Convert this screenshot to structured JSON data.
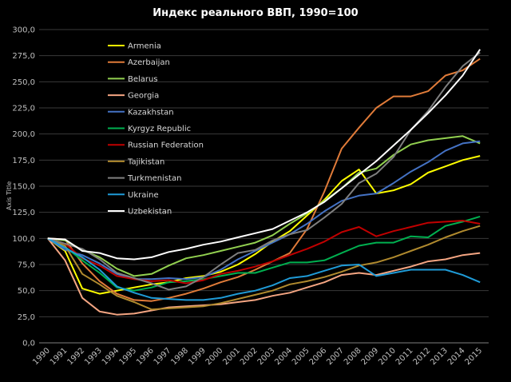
{
  "chart_data": {
    "type": "line",
    "title": "Индекс реального ВВП, 1990=100",
    "ylabel": "Axis Title",
    "xlabel": "",
    "ylim": [
      0,
      300
    ],
    "yticks": [
      "0,0",
      "25,0",
      "50,0",
      "75,0",
      "100,0",
      "125,0",
      "150,0",
      "175,0",
      "200,0",
      "225,0",
      "250,0",
      "275,0",
      "300,0"
    ],
    "grid": true,
    "legend_position": "top-left",
    "x": [
      "1990",
      "1991",
      "1992",
      "1993",
      "1994",
      "1995",
      "1996",
      "1997",
      "1998",
      "1999",
      "2000",
      "2001",
      "2002",
      "2003",
      "2004",
      "2005",
      "2006",
      "2007",
      "2008",
      "2009",
      "2010",
      "2011",
      "2012",
      "2013",
      "2014",
      "2015"
    ],
    "series": [
      {
        "name": "Armenia",
        "color": "#ffff00",
        "values": [
          100,
          88,
          52,
          47,
          50,
          53,
          56,
          58,
          62,
          64,
          68,
          75,
          85,
          97,
          107,
          122,
          137,
          155,
          166,
          143,
          146,
          152,
          163,
          169,
          175,
          179
        ]
      },
      {
        "name": "Azerbaijan",
        "color": "#e07b39",
        "values": [
          100,
          99,
          76,
          59,
          47,
          41,
          40,
          43,
          47,
          52,
          58,
          63,
          70,
          78,
          86,
          109,
          145,
          186,
          206,
          225,
          236,
          236,
          241,
          256,
          261,
          272
        ]
      },
      {
        "name": "Belarus",
        "color": "#92d050",
        "values": [
          100,
          98,
          89,
          82,
          71,
          64,
          66,
          74,
          81,
          84,
          88,
          92,
          96,
          103,
          114,
          124,
          136,
          148,
          163,
          167,
          180,
          190,
          194,
          196,
          198,
          191
        ]
      },
      {
        "name": "Georgia",
        "color": "#f4a582",
        "values": [
          100,
          79,
          43,
          30,
          27,
          28,
          31,
          34,
          35,
          36,
          37,
          39,
          41,
          45,
          48,
          53,
          58,
          65,
          67,
          65,
          69,
          73,
          78,
          80,
          84,
          86
        ]
      },
      {
        "name": "Kazakhstan",
        "color": "#4472c4",
        "values": [
          100,
          89,
          84,
          76,
          66,
          61,
          61,
          62,
          61,
          63,
          70,
          80,
          88,
          96,
          104,
          114,
          126,
          136,
          141,
          143,
          153,
          164,
          173,
          184,
          191,
          193
        ]
      },
      {
        "name": "Kyrgyz Republic",
        "color": "#00b050",
        "values": [
          100,
          92,
          79,
          67,
          53,
          50,
          53,
          58,
          59,
          61,
          64,
          67,
          67,
          72,
          77,
          77,
          79,
          86,
          93,
          96,
          96,
          102,
          101,
          112,
          116,
          121
        ]
      },
      {
        "name": "Russian Federation",
        "color": "#c00000",
        "values": [
          100,
          95,
          81,
          74,
          64,
          61,
          59,
          60,
          57,
          60,
          66,
          69,
          73,
          78,
          84,
          90,
          97,
          106,
          111,
          102,
          107,
          111,
          115,
          116,
          117,
          114
        ]
      },
      {
        "name": "Tajikistan",
        "color": "#b08a2e",
        "values": [
          100,
          93,
          66,
          56,
          45,
          39,
          32,
          33,
          34,
          35,
          38,
          42,
          46,
          50,
          56,
          59,
          63,
          68,
          74,
          77,
          82,
          88,
          94,
          101,
          107,
          112
        ]
      },
      {
        "name": "Turkmenistan",
        "color": "#7f7f7f",
        "values": [
          100,
          95,
          90,
          80,
          67,
          62,
          57,
          51,
          54,
          63,
          75,
          86,
          89,
          98,
          104,
          108,
          120,
          133,
          153,
          162,
          178,
          204,
          222,
          245,
          265,
          278
        ]
      },
      {
        "name": "Ukraine",
        "color": "#1f9bd7",
        "values": [
          100,
          91,
          82,
          70,
          54,
          48,
          43,
          42,
          41,
          41,
          43,
          47,
          50,
          55,
          62,
          64,
          69,
          74,
          75,
          64,
          67,
          70,
          70,
          70,
          65,
          58
        ]
      },
      {
        "name": "Uzbekistan",
        "color": "#ffffff",
        "values": [
          100,
          99,
          88,
          86,
          81,
          80,
          82,
          87,
          90,
          94,
          97,
          101,
          105,
          109,
          117,
          125,
          135,
          148,
          161,
          174,
          189,
          204,
          220,
          237,
          256,
          281
        ]
      }
    ]
  },
  "colors": {
    "background": "#000000",
    "grid": "#3a3a3a",
    "axis": "#808080",
    "text": "#bfbfbf"
  }
}
